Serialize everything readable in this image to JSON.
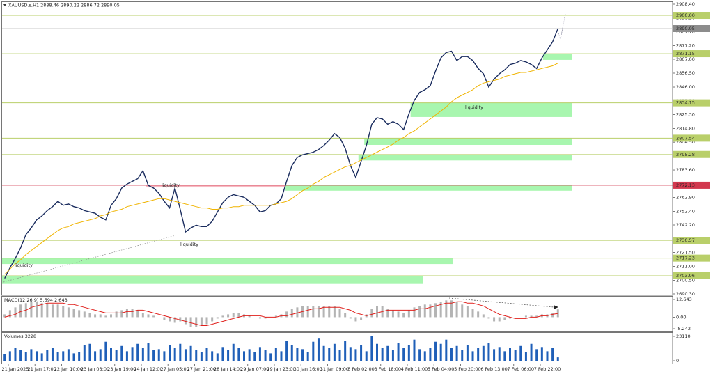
{
  "chart_data": [
    {
      "type": "line",
      "title": "XAUUSD.s,H1  2888.46 2890.22 2886.72 2890.05",
      "categories": [
        null,
        null,
        "21 Jan 2025",
        null,
        null,
        null,
        null,
        "21 Jan 17:00",
        null,
        null,
        null,
        null,
        "22 Jan 10:00",
        null,
        null,
        null,
        null,
        "23 Jan 03:00",
        null,
        null,
        null,
        null,
        "23 Jan 19:00",
        null,
        null,
        null,
        null,
        "24 Jan 12:00",
        null,
        null,
        null,
        null,
        "27 Jan 05:00",
        null,
        null,
        null,
        null,
        "27 Jan 21:00",
        null,
        null,
        null,
        null,
        "28 Jan 14:00",
        null,
        null,
        null,
        null,
        "29 Jan 07:00",
        null,
        null,
        null,
        null,
        "29 Jan 23:00",
        null,
        null,
        null,
        null,
        "30 Jan 16:00",
        null,
        null,
        null,
        null,
        "31 Jan 09:00",
        null,
        null,
        null,
        null,
        "3 Feb 02:00",
        null,
        null,
        null,
        null,
        "3 Feb 18:00",
        null,
        null,
        null,
        null,
        "4 Feb 11:00",
        null,
        null,
        null,
        null,
        "5 Feb 04:00",
        null,
        null,
        null,
        null,
        "5 Feb 20:00",
        null,
        null,
        null,
        null,
        "6 Feb 13:00",
        null,
        null,
        null,
        null,
        "7 Feb 06:00",
        null,
        null,
        null,
        null,
        "7 Feb 22:00",
        null,
        null
      ],
      "series": [
        {
          "color": "#1a2c5e",
          "values": [
            2702,
            2710,
            2717,
            2725,
            2735,
            2740,
            2746,
            2749,
            2753,
            2756,
            2760,
            2757,
            2758,
            2756,
            2755,
            2753,
            2752,
            2751,
            2748,
            2746,
            2757,
            2762,
            2770,
            2773,
            2775,
            2777,
            2783,
            2772,
            2770,
            2766,
            2760,
            2755,
            2770,
            2754,
            2737,
            2740,
            2742,
            2741,
            2741,
            2745,
            2752,
            2759,
            2763,
            2765,
            2764,
            2763,
            2760,
            2757,
            2752,
            2753,
            2757,
            2758,
            2762,
            2775,
            2787,
            2793,
            2795,
            2796,
            2797,
            2799,
            2802,
            2806,
            2811,
            2808,
            2800,
            2787,
            2778,
            2790,
            2802,
            2818,
            2823,
            2822,
            2818,
            2820,
            2818,
            2814,
            2826,
            2836,
            2842,
            2844,
            2847,
            2858,
            2868,
            2872,
            2873,
            2866,
            2869,
            2869,
            2866,
            2860,
            2856,
            2846,
            2852,
            2856,
            2859,
            2863,
            2864,
            2866,
            2865,
            2863,
            2860,
            2868,
            2874,
            2880,
            2890.05
          ]
        },
        {
          "color": "#f0b400",
          "values": [
            2705,
            2709,
            2713,
            2716,
            2720,
            2723,
            2726,
            2729,
            2732,
            2735,
            2738,
            2740,
            2741,
            2743,
            2744,
            2745,
            2746,
            2747,
            2749,
            2750,
            2752,
            2753,
            2754,
            2756,
            2757,
            2758,
            2759,
            2760,
            2761,
            2762,
            2762,
            2761,
            2760,
            2759,
            2758,
            2757,
            2756,
            2755,
            2755,
            2754,
            2754,
            2755,
            2755,
            2756,
            2756,
            2757,
            2757,
            2757,
            2757,
            2757,
            2757,
            2758,
            2759,
            2760,
            2762,
            2765,
            2768,
            2770,
            2773,
            2775,
            2778,
            2780,
            2782,
            2784,
            2786,
            2787,
            2789,
            2791,
            2793,
            2795,
            2797,
            2799,
            2801,
            2803,
            2806,
            2808,
            2811,
            2813,
            2816,
            2819,
            2822,
            2825,
            2828,
            2831,
            2835,
            2838,
            2840,
            2842,
            2844,
            2847,
            2849,
            2850,
            2851,
            2852,
            2854,
            2855,
            2856,
            2857,
            2857,
            2858,
            2859,
            2860,
            2861,
            2862,
            2864
          ]
        }
      ],
      "ylim": [
        2690.3,
        2908.4
      ],
      "yticks": [
        {
          "value": 2908.4,
          "label": "2908.40"
        },
        {
          "value": 2898.2,
          "label": "2898.20"
        },
        {
          "value": 2887.7,
          "label": "2887.70"
        },
        {
          "value": 2877.2,
          "label": "2877.20"
        },
        {
          "value": 2867,
          "label": "2867.00"
        },
        {
          "value": 2856.5,
          "label": "2856.50"
        },
        {
          "value": 2846,
          "label": "2846.00"
        },
        {
          "value": 2835.5,
          "label": "2835.50"
        },
        {
          "value": 2825.3,
          "label": "2825.30"
        },
        {
          "value": 2814.8,
          "label": "2814.80"
        },
        {
          "value": 2804.5,
          "label": "2804.50"
        },
        {
          "value": 2794,
          "label": "2794.00"
        },
        {
          "value": 2783.6,
          "label": "2783.60"
        },
        {
          "value": 2773.3,
          "label": "2773.30"
        },
        {
          "value": 2762.9,
          "label": "2762.90"
        },
        {
          "value": 2752.4,
          "label": "2752.40"
        },
        {
          "value": 2742.2,
          "label": "2742.20"
        },
        {
          "value": 2731.7,
          "label": "2731.70"
        },
        {
          "value": 2721.5,
          "label": "2721.50"
        },
        {
          "value": 2711,
          "label": "2711.00"
        },
        {
          "value": 2700.5,
          "label": "2700.50"
        },
        {
          "value": 2690.3,
          "label": "2690.30"
        }
      ],
      "levels": {
        "values": [
          2900,
          2890.05,
          2871.15,
          2834.15,
          2807.54,
          2795.28,
          2772.13,
          2730.57,
          2717.23,
          2703.96
        ],
        "value_labels": [
          "2900.00",
          "2890.05",
          "2871.15",
          "2834.15",
          "2807.54",
          "2795.28",
          "2772.13",
          "2730.57",
          "2717.23",
          "2703.96"
        ],
        "colors": [
          "#b9cf6a",
          "#c8c8c8",
          "#b9cf6a",
          "#b9cf6a",
          "#b9cf6a",
          "#b9cf6a",
          "#d2384e",
          "#b9cf6a",
          "#b9cf6a",
          "#b9cf6a"
        ]
      },
      "zones": {
        "from": [
          2871.15,
          2834.15,
          2807.54,
          2795.28,
          2772.13,
          2772.13,
          2717.23,
          2703.96
        ],
        "to": [
          2866.5,
          2823.5,
          2802.5,
          2790.8,
          2768,
          2770.5,
          2712.8,
          2697.8
        ],
        "start": [
          101.2,
          76.3,
          67.6,
          66.5,
          52.8,
          26.6,
          -0.5,
          -0.5
        ],
        "end": [
          106.7,
          106.7,
          106.7,
          106.7,
          106.7,
          52.8,
          84.2,
          78.6
        ],
        "colors": [
          "#9ef5a6",
          "#9ef5a6",
          "#9ef5a6",
          "#9ef5a6",
          "#9ef5a6",
          "#f6b3bc",
          "#9ef5a6",
          "#9ef5a6"
        ]
      },
      "annotations": [
        "liquidity",
        "liquidity",
        "liquidity",
        "liquidity"
      ]
    },
    {
      "type": "macd",
      "title": "MACD(12,26,9) 5.594 2.643",
      "series": [
        {
          "color": "#b4b4b4",
          "values": [
            2,
            5,
            7,
            9,
            10,
            11,
            11,
            10,
            10,
            9,
            9,
            8,
            7,
            6,
            5,
            4,
            3,
            2,
            2,
            1,
            2,
            4,
            5,
            6,
            6,
            5,
            3,
            2,
            1,
            0,
            -2,
            -3,
            -4,
            -3,
            -5,
            -7,
            -7,
            -6,
            -5,
            -3,
            -1,
            1,
            2,
            3,
            3,
            2,
            1,
            0,
            -1,
            -1,
            0,
            1,
            2,
            4,
            6,
            7,
            8,
            8,
            8,
            8,
            8,
            8,
            8,
            6,
            3,
            -1,
            -3,
            -2,
            2,
            6,
            8,
            8,
            6,
            5,
            4,
            3,
            5,
            7,
            8,
            9,
            9,
            10,
            11,
            12,
            12,
            11,
            9,
            8,
            6,
            4,
            2,
            -1,
            -3,
            -3,
            -2,
            -1,
            0,
            0,
            1,
            1,
            1,
            2,
            2,
            3,
            5.594
          ]
        },
        {
          "color": "#e0201c",
          "values": [
            0,
            1,
            2,
            4,
            5,
            7,
            8,
            9,
            10,
            10,
            10,
            10,
            9,
            9,
            8,
            7,
            6,
            5,
            4,
            3,
            3,
            3,
            3,
            4,
            4,
            5,
            5,
            4,
            3,
            2,
            1,
            0,
            -1,
            -2,
            -3,
            -4,
            -5,
            -6,
            -6,
            -5,
            -4,
            -3,
            -2,
            -1,
            0,
            1,
            1,
            1,
            1,
            0,
            0,
            0,
            1,
            1,
            2,
            3,
            4,
            5,
            6,
            6,
            7,
            7,
            7,
            7,
            6,
            5,
            3,
            2,
            1,
            2,
            3,
            4,
            5,
            5,
            5,
            5,
            5,
            5,
            6,
            6,
            7,
            8,
            9,
            10,
            10,
            11,
            11,
            10,
            10,
            9,
            8,
            6,
            4,
            2,
            1,
            0,
            -1,
            -1,
            -1,
            0,
            0,
            1,
            1,
            2,
            2.643
          ]
        }
      ],
      "ylim": [
        -10.23,
        14.63
      ],
      "yticks": [
        12.643,
        {
          "value": 0,
          "label": "0.00"
        },
        -8.242
      ]
    },
    {
      "type": "bar",
      "title": "Volumes 3228",
      "color": "#1f5fb8",
      "values": [
        6000,
        9000,
        12000,
        10000,
        8000,
        11000,
        9000,
        7000,
        10000,
        12000,
        8000,
        9000,
        11000,
        7000,
        8000,
        15000,
        16000,
        9000,
        11000,
        18000,
        12000,
        10000,
        14000,
        9000,
        13000,
        16000,
        12000,
        17000,
        10000,
        11000,
        9000,
        15000,
        12000,
        16000,
        11000,
        14000,
        10000,
        8000,
        12000,
        9000,
        7000,
        13000,
        10000,
        16000,
        12000,
        9000,
        11000,
        8000,
        13000,
        10000,
        7000,
        12000,
        9000,
        19000,
        15000,
        12000,
        11000,
        8000,
        18000,
        21000,
        14000,
        12000,
        16000,
        10000,
        19000,
        13000,
        11000,
        15000,
        9000,
        23110,
        16000,
        12000,
        14000,
        10000,
        17000,
        12000,
        15000,
        20000,
        11000,
        9000,
        12000,
        18000,
        16000,
        20000,
        12000,
        14000,
        10000,
        15000,
        9000,
        12000,
        14000,
        17000,
        11000,
        13000,
        9000,
        12000,
        10000,
        14000,
        8000,
        16000,
        11000,
        13000,
        9000,
        12000,
        3228
      ],
      "ylim": [
        0,
        26400
      ],
      "yticks": [
        23110,
        0
      ]
    }
  ]
}
